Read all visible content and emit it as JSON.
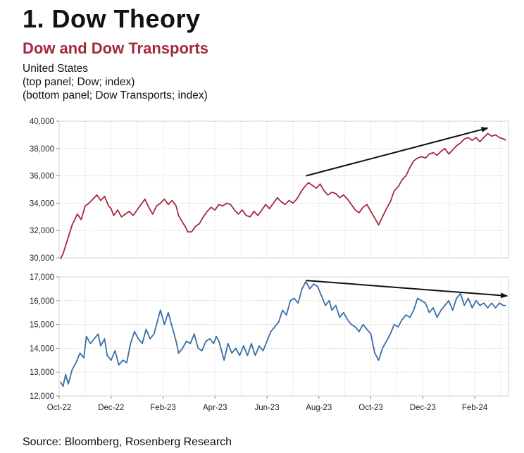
{
  "heading": "1. Dow Theory",
  "chart_title": "Dow and Dow Transports",
  "subtitle_lines": [
    "United States",
    "(top panel; Dow; index)",
    "(bottom panel; Dow Transports; index)"
  ],
  "source": "Source: Bloomberg, Rosenberg Research",
  "colors": {
    "top_series": "#a32a3e",
    "bottom_series": "#3a6ea5",
    "trend_arrow": "#111111"
  },
  "chart_data": [
    {
      "type": "line",
      "panel": "top",
      "series_name": "Dow",
      "ylabel": "index",
      "ylim": [
        30000,
        40000
      ],
      "yticks": [
        "40,000",
        "38,000",
        "36,000",
        "34,000",
        "32,000",
        "30,000"
      ],
      "ytick_values": [
        40000,
        38000,
        36000,
        34000,
        32000,
        30000
      ],
      "xlim": [
        0,
        17.3
      ],
      "grid": true,
      "points": [
        [
          0.05,
          29900
        ],
        [
          0.15,
          30300
        ],
        [
          0.3,
          31200
        ],
        [
          0.5,
          32400
        ],
        [
          0.7,
          33200
        ],
        [
          0.85,
          32800
        ],
        [
          1.0,
          33800
        ],
        [
          1.15,
          34000
        ],
        [
          1.3,
          34300
        ],
        [
          1.45,
          34600
        ],
        [
          1.6,
          34200
        ],
        [
          1.75,
          34500
        ],
        [
          1.9,
          33800
        ],
        [
          2.0,
          33600
        ],
        [
          2.1,
          33100
        ],
        [
          2.25,
          33500
        ],
        [
          2.4,
          33000
        ],
        [
          2.55,
          33200
        ],
        [
          2.7,
          33400
        ],
        [
          2.85,
          33100
        ],
        [
          3.0,
          33500
        ],
        [
          3.15,
          33900
        ],
        [
          3.3,
          34300
        ],
        [
          3.45,
          33700
        ],
        [
          3.6,
          33200
        ],
        [
          3.75,
          33800
        ],
        [
          3.9,
          34000
        ],
        [
          4.05,
          34300
        ],
        [
          4.2,
          33900
        ],
        [
          4.35,
          34200
        ],
        [
          4.5,
          33800
        ],
        [
          4.6,
          33100
        ],
        [
          4.75,
          32600
        ],
        [
          4.85,
          32300
        ],
        [
          4.95,
          31900
        ],
        [
          5.1,
          31900
        ],
        [
          5.25,
          32300
        ],
        [
          5.4,
          32500
        ],
        [
          5.55,
          33000
        ],
        [
          5.7,
          33400
        ],
        [
          5.85,
          33700
        ],
        [
          6.0,
          33500
        ],
        [
          6.15,
          33900
        ],
        [
          6.3,
          33800
        ],
        [
          6.45,
          34000
        ],
        [
          6.6,
          33900
        ],
        [
          6.75,
          33500
        ],
        [
          6.9,
          33200
        ],
        [
          7.05,
          33500
        ],
        [
          7.2,
          33100
        ],
        [
          7.35,
          33000
        ],
        [
          7.5,
          33400
        ],
        [
          7.65,
          33100
        ],
        [
          7.8,
          33500
        ],
        [
          7.95,
          33900
        ],
        [
          8.1,
          33600
        ],
        [
          8.25,
          34000
        ],
        [
          8.4,
          34400
        ],
        [
          8.55,
          34100
        ],
        [
          8.7,
          33900
        ],
        [
          8.85,
          34200
        ],
        [
          9.0,
          34000
        ],
        [
          9.15,
          34300
        ],
        [
          9.3,
          34800
        ],
        [
          9.45,
          35200
        ],
        [
          9.6,
          35500
        ],
        [
          9.75,
          35300
        ],
        [
          9.9,
          35100
        ],
        [
          10.05,
          35400
        ],
        [
          10.2,
          34900
        ],
        [
          10.35,
          34600
        ],
        [
          10.5,
          34800
        ],
        [
          10.65,
          34700
        ],
        [
          10.8,
          34400
        ],
        [
          10.95,
          34600
        ],
        [
          11.1,
          34300
        ],
        [
          11.25,
          33900
        ],
        [
          11.4,
          33500
        ],
        [
          11.55,
          33300
        ],
        [
          11.7,
          33700
        ],
        [
          11.85,
          33900
        ],
        [
          12.0,
          33400
        ],
        [
          12.15,
          32900
        ],
        [
          12.3,
          32400
        ],
        [
          12.45,
          33000
        ],
        [
          12.6,
          33600
        ],
        [
          12.75,
          34100
        ],
        [
          12.9,
          34900
        ],
        [
          13.05,
          35200
        ],
        [
          13.2,
          35700
        ],
        [
          13.35,
          36000
        ],
        [
          13.5,
          36600
        ],
        [
          13.65,
          37100
        ],
        [
          13.8,
          37300
        ],
        [
          13.95,
          37400
        ],
        [
          14.1,
          37300
        ],
        [
          14.25,
          37600
        ],
        [
          14.4,
          37700
        ],
        [
          14.55,
          37500
        ],
        [
          14.7,
          37800
        ],
        [
          14.85,
          38000
        ],
        [
          15.0,
          37600
        ],
        [
          15.15,
          37900
        ],
        [
          15.3,
          38200
        ],
        [
          15.45,
          38400
        ],
        [
          15.6,
          38700
        ],
        [
          15.75,
          38800
        ],
        [
          15.9,
          38600
        ],
        [
          16.05,
          38800
        ],
        [
          16.2,
          38500
        ],
        [
          16.35,
          38800
        ],
        [
          16.5,
          39100
        ],
        [
          16.65,
          38900
        ],
        [
          16.8,
          39000
        ],
        [
          16.95,
          38800
        ],
        [
          17.1,
          38700
        ],
        [
          17.2,
          38600
        ]
      ],
      "trend_arrow": {
        "from": [
          9.5,
          36000
        ],
        "to": [
          16.5,
          39500
        ]
      }
    },
    {
      "type": "line",
      "panel": "bottom",
      "series_name": "Dow Transports",
      "ylabel": "index",
      "ylim": [
        12000,
        17000
      ],
      "yticks": [
        "17,000",
        "16,000",
        "15,000",
        "14,000",
        "13,000",
        "12,000"
      ],
      "ytick_values": [
        17000,
        16000,
        15000,
        14000,
        13000,
        12000
      ],
      "xlim": [
        0,
        17.3
      ],
      "xticks": [
        "Oct-22",
        "Dec-22",
        "Feb-23",
        "Apr-23",
        "Jun-23",
        "Aug-23",
        "Oct-23",
        "Dec-23",
        "Feb-24"
      ],
      "xtick_values": [
        0,
        2,
        4,
        6,
        8,
        10,
        12,
        14,
        16
      ],
      "grid": true,
      "points": [
        [
          0.05,
          12600
        ],
        [
          0.15,
          12400
        ],
        [
          0.25,
          12900
        ],
        [
          0.35,
          12500
        ],
        [
          0.5,
          13100
        ],
        [
          0.65,
          13400
        ],
        [
          0.8,
          13800
        ],
        [
          0.95,
          13600
        ],
        [
          1.05,
          14500
        ],
        [
          1.2,
          14200
        ],
        [
          1.35,
          14400
        ],
        [
          1.5,
          14600
        ],
        [
          1.6,
          14100
        ],
        [
          1.75,
          14400
        ],
        [
          1.85,
          13700
        ],
        [
          2.0,
          13500
        ],
        [
          2.15,
          13900
        ],
        [
          2.3,
          13300
        ],
        [
          2.45,
          13500
        ],
        [
          2.6,
          13400
        ],
        [
          2.75,
          14200
        ],
        [
          2.9,
          14700
        ],
        [
          3.05,
          14400
        ],
        [
          3.2,
          14200
        ],
        [
          3.35,
          14800
        ],
        [
          3.5,
          14400
        ],
        [
          3.65,
          14600
        ],
        [
          3.8,
          15200
        ],
        [
          3.9,
          15600
        ],
        [
          4.05,
          15000
        ],
        [
          4.2,
          15500
        ],
        [
          4.35,
          14900
        ],
        [
          4.5,
          14300
        ],
        [
          4.6,
          13800
        ],
        [
          4.75,
          14000
        ],
        [
          4.9,
          14300
        ],
        [
          5.05,
          14200
        ],
        [
          5.2,
          14600
        ],
        [
          5.35,
          14000
        ],
        [
          5.5,
          13900
        ],
        [
          5.65,
          14300
        ],
        [
          5.8,
          14400
        ],
        [
          5.95,
          14200
        ],
        [
          6.05,
          14500
        ],
        [
          6.15,
          14300
        ],
        [
          6.25,
          13900
        ],
        [
          6.35,
          13500
        ],
        [
          6.5,
          14200
        ],
        [
          6.65,
          13800
        ],
        [
          6.8,
          14000
        ],
        [
          6.95,
          13700
        ],
        [
          7.1,
          14100
        ],
        [
          7.25,
          13700
        ],
        [
          7.4,
          14200
        ],
        [
          7.55,
          13700
        ],
        [
          7.7,
          14100
        ],
        [
          7.85,
          13900
        ],
        [
          8.0,
          14300
        ],
        [
          8.15,
          14700
        ],
        [
          8.3,
          14900
        ],
        [
          8.45,
          15100
        ],
        [
          8.6,
          15600
        ],
        [
          8.75,
          15400
        ],
        [
          8.9,
          16000
        ],
        [
          9.05,
          16100
        ],
        [
          9.2,
          15900
        ],
        [
          9.35,
          16500
        ],
        [
          9.5,
          16800
        ],
        [
          9.65,
          16500
        ],
        [
          9.8,
          16700
        ],
        [
          9.95,
          16600
        ],
        [
          10.1,
          16200
        ],
        [
          10.25,
          15800
        ],
        [
          10.4,
          16000
        ],
        [
          10.5,
          15600
        ],
        [
          10.65,
          15800
        ],
        [
          10.8,
          15300
        ],
        [
          10.95,
          15500
        ],
        [
          11.1,
          15200
        ],
        [
          11.25,
          15000
        ],
        [
          11.4,
          14900
        ],
        [
          11.55,
          14700
        ],
        [
          11.7,
          15000
        ],
        [
          11.85,
          14800
        ],
        [
          12.0,
          14600
        ],
        [
          12.15,
          13800
        ],
        [
          12.3,
          13500
        ],
        [
          12.45,
          14000
        ],
        [
          12.6,
          14300
        ],
        [
          12.75,
          14600
        ],
        [
          12.9,
          15000
        ],
        [
          13.05,
          14900
        ],
        [
          13.2,
          15200
        ],
        [
          13.35,
          15400
        ],
        [
          13.5,
          15300
        ],
        [
          13.65,
          15600
        ],
        [
          13.8,
          16100
        ],
        [
          13.95,
          16000
        ],
        [
          14.1,
          15900
        ],
        [
          14.25,
          15500
        ],
        [
          14.4,
          15700
        ],
        [
          14.55,
          15300
        ],
        [
          14.7,
          15600
        ],
        [
          14.85,
          15800
        ],
        [
          15.0,
          16000
        ],
        [
          15.15,
          15600
        ],
        [
          15.3,
          16100
        ],
        [
          15.45,
          16300
        ],
        [
          15.6,
          15800
        ],
        [
          15.75,
          16100
        ],
        [
          15.9,
          15700
        ],
        [
          16.05,
          16000
        ],
        [
          16.2,
          15800
        ],
        [
          16.35,
          15900
        ],
        [
          16.5,
          15700
        ],
        [
          16.65,
          15900
        ],
        [
          16.8,
          15700
        ],
        [
          16.95,
          15900
        ],
        [
          17.1,
          15800
        ],
        [
          17.2,
          15800
        ]
      ],
      "trend_arrow": {
        "from": [
          9.5,
          16850
        ],
        "to": [
          17.25,
          16200
        ]
      }
    }
  ]
}
